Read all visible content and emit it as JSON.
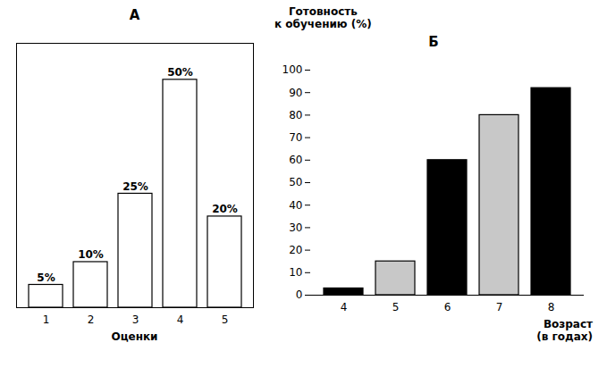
{
  "chart_data": [
    {
      "type": "bar",
      "title": "А",
      "categories": [
        1,
        2,
        3,
        4,
        5
      ],
      "values": [
        5,
        10,
        25,
        50,
        20
      ],
      "value_labels": [
        "5%",
        "10%",
        "25%",
        "50%",
        "20%"
      ],
      "data_labels": true,
      "xlabel": "Оценки",
      "color": "white",
      "ylim": [
        0,
        58
      ],
      "tick_labels": "x"
    },
    {
      "type": "bar",
      "title": "Б",
      "categories": [
        4,
        5,
        6,
        7,
        8
      ],
      "values": [
        3,
        15,
        60,
        80,
        92
      ],
      "colors": [
        "black",
        "#c8c8c8",
        "black",
        "#c8c8c8",
        "black"
      ],
      "xlabel": "Возраст\n(в годах)",
      "ylabel": "Готовность\nк обучению (%)",
      "ylim": [
        0,
        100
      ],
      "yticks": [
        0,
        10,
        20,
        30,
        40,
        50,
        60,
        70,
        80,
        90,
        100
      ]
    }
  ]
}
